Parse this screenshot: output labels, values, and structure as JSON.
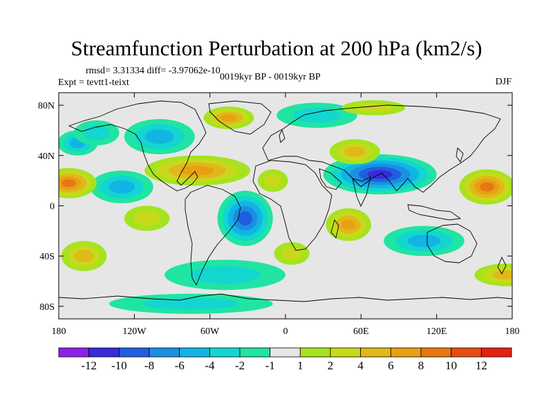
{
  "title": "Streamfunction Perturbation at 200 hPa (km2/s)",
  "stats_text": "rmsd= 3.31334 diff= -3.97062e-10",
  "experiment_text": "Expt = tevtt1-teixt",
  "period_text": "0019kyr BP - 0019kyr BP",
  "season_text": "DJF",
  "lat_ticks": [
    {
      "value": 80,
      "label": "80N"
    },
    {
      "value": 40,
      "label": "40N"
    },
    {
      "value": 0,
      "label": "0"
    },
    {
      "value": -40,
      "label": "40S"
    },
    {
      "value": -80,
      "label": "80S"
    }
  ],
  "lon_ticks": [
    {
      "value": -180,
      "label": "180"
    },
    {
      "value": -120,
      "label": "120W"
    },
    {
      "value": -60,
      "label": "60W"
    },
    {
      "value": 0,
      "label": "0"
    },
    {
      "value": 60,
      "label": "60E"
    },
    {
      "value": 120,
      "label": "120E"
    },
    {
      "value": 180,
      "label": "180"
    }
  ],
  "colorbar": {
    "colors": [
      "#8c21e6",
      "#3a2ad8",
      "#1f5fde",
      "#1b8fe2",
      "#12b4e4",
      "#13d6d0",
      "#20e4a2",
      "#e6e6e6",
      "#a6e31f",
      "#c8d91c",
      "#e0b81a",
      "#e8a013",
      "#e67712",
      "#e44d12",
      "#e42110"
    ],
    "labels": [
      "-12",
      "-10",
      "-8",
      "-6",
      "-4",
      "-2",
      "-1",
      "1",
      "2",
      "4",
      "6",
      "8",
      "10",
      "12"
    ]
  },
  "chart_data": {
    "type": "heatmap",
    "title": "Streamfunction Perturbation at 200 hPa (km2/s)",
    "xlabel": "",
    "ylabel": "",
    "xlim": [
      -180,
      180
    ],
    "ylim": [
      -90,
      90
    ],
    "contour_levels": [
      -12,
      -10,
      -8,
      -6,
      -4,
      -2,
      -1,
      1,
      2,
      4,
      6,
      8,
      10,
      12
    ],
    "anomaly_centers": [
      {
        "lon": 75,
        "lat": 25,
        "rx": 45,
        "ry": 16,
        "value": -10.5
      },
      {
        "lon": -32,
        "lat": -10,
        "rx": 22,
        "ry": 22,
        "value": -9
      },
      {
        "lon": -100,
        "lat": 55,
        "rx": 28,
        "ry": 14,
        "value": -5
      },
      {
        "lon": -130,
        "lat": 15,
        "rx": 25,
        "ry": 13,
        "value": -4
      },
      {
        "lon": 25,
        "lat": 72,
        "rx": 32,
        "ry": 10,
        "value": -3
      },
      {
        "lon": -165,
        "lat": 50,
        "rx": 16,
        "ry": 10,
        "value": -4
      },
      {
        "lon": 110,
        "lat": -28,
        "rx": 32,
        "ry": 12,
        "value": -4
      },
      {
        "lon": -75,
        "lat": -78,
        "rx": 65,
        "ry": 8,
        "value": -3
      },
      {
        "lon": -48,
        "lat": -55,
        "rx": 48,
        "ry": 12,
        "value": -2
      },
      {
        "lon": -150,
        "lat": 58,
        "rx": 18,
        "ry": 10,
        "value": -2
      },
      {
        "lon": -172,
        "lat": 18,
        "rx": 22,
        "ry": 12,
        "value": 9
      },
      {
        "lon": 160,
        "lat": 15,
        "rx": 22,
        "ry": 14,
        "value": 9
      },
      {
        "lon": -70,
        "lat": 28,
        "rx": 42,
        "ry": 12,
        "value": 7
      },
      {
        "lon": 50,
        "lat": -15,
        "rx": 18,
        "ry": 13,
        "value": 6
      },
      {
        "lon": -45,
        "lat": 70,
        "rx": 20,
        "ry": 9,
        "value": 6
      },
      {
        "lon": 55,
        "lat": 43,
        "rx": 20,
        "ry": 10,
        "value": 5
      },
      {
        "lon": 175,
        "lat": -55,
        "rx": 25,
        "ry": 9,
        "value": 5
      },
      {
        "lon": -160,
        "lat": -40,
        "rx": 18,
        "ry": 12,
        "value": 4
      },
      {
        "lon": -110,
        "lat": -10,
        "rx": 18,
        "ry": 10,
        "value": 3
      },
      {
        "lon": 5,
        "lat": -38,
        "rx": 14,
        "ry": 9,
        "value": 3
      },
      {
        "lon": 70,
        "lat": 78,
        "rx": 25,
        "ry": 6,
        "value": 2
      },
      {
        "lon": -10,
        "lat": 20,
        "rx": 12,
        "ry": 9,
        "value": 2
      }
    ]
  }
}
